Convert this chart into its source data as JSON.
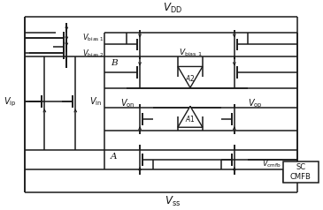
{
  "fig_width": 3.65,
  "fig_height": 2.38,
  "dpi": 100,
  "labels": {
    "VDD": "$V_{\\mathrm{DD}}$",
    "VSS": "$V_{\\mathrm{ss}}$",
    "Vbias1_left": "$V_{\\mathrm{bias\\ 1}}$",
    "Vbias2_left": "$V_{\\mathrm{bias\\ 2}}$",
    "Vbias1_right": "$V_{\\mathrm{bias\\ 1}}$",
    "Vip": "$V_{\\mathrm{ip}}$",
    "Vin": "$V_{\\mathrm{in}}$",
    "Von": "$V_{\\mathrm{on}}$",
    "Vop": "$V_{\\mathrm{op}}$",
    "Vcmfb": "$V_{\\mathrm{cmfb}}$",
    "A": "A",
    "B": "B",
    "A2_label": "$A2$",
    "A1_label": "$A1$",
    "SC_CMFB": "SC\nCMFB"
  }
}
